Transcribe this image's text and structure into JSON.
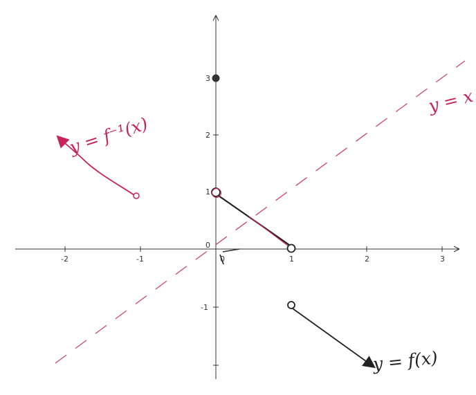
{
  "chart_data": {
    "type": "line",
    "axes": {
      "x_ticks": [
        "-2",
        "-1",
        "0",
        "1",
        "2",
        "3"
      ],
      "y_ticks": [
        "-1",
        "0",
        "1",
        "2",
        "3"
      ],
      "xlim": [
        -2.7,
        3.3
      ],
      "ylim": [
        -2.05,
        4.1
      ],
      "grid": false
    },
    "series": [
      {
        "name": "y = f(x)",
        "color": "#222222",
        "segments": [
          {
            "points": [
              [
                0,
                1
              ],
              [
                1,
                0
              ]
            ],
            "start": "open",
            "end": "open"
          },
          {
            "points": [
              [
                1,
                -1
              ],
              [
                2.1,
                -2.05
              ]
            ],
            "start": "open",
            "end": "arrow"
          }
        ],
        "isolated_points": [
          {
            "x": 0,
            "y": 3,
            "style": "closed"
          }
        ]
      },
      {
        "name": "y = f⁻¹(x)",
        "color": "#c8245a",
        "segments": [
          {
            "points": [
              [
                -1.1,
                0.9
              ],
              [
                -2.1,
                1.95
              ]
            ],
            "start": "open",
            "end": "arrow"
          }
        ]
      },
      {
        "name": "y = x",
        "color": "#c8245a",
        "style": "dashed",
        "segments": [
          {
            "points": [
              [
                -2.1,
                -1.95
              ],
              [
                3.3,
                3.3
              ]
            ]
          }
        ]
      }
    ],
    "annotations": {
      "f_label": "y = f(x)",
      "finv_label": "y = f⁻¹(x)",
      "identity_label": "y = x"
    }
  }
}
